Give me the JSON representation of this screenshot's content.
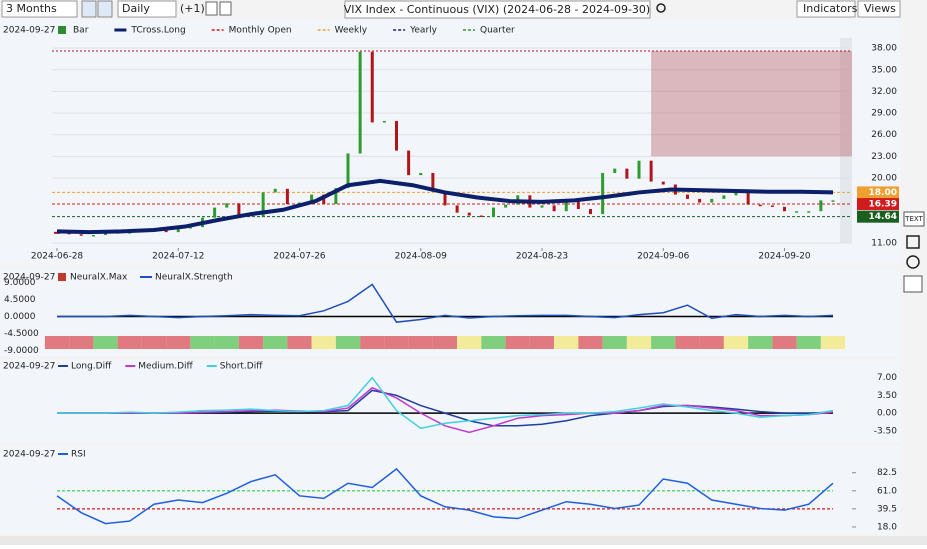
{
  "toolbar": {
    "period": "3 Months",
    "interval": "Daily",
    "offset": "(+1)",
    "title": "VIX Index - Continuous (VIX) (2024-06-28 - 2024-09-30)",
    "indicators": "Indicators",
    "views": "Views"
  },
  "main": {
    "legend": {
      "date": "2024-09-27",
      "items": [
        {
          "name": "Bar",
          "color": "#2e8b2e"
        },
        {
          "name": "TCross.Long",
          "color": "#0b1f6b"
        },
        {
          "name": "Monthly Open",
          "color": "#d01c1c"
        },
        {
          "name": "Weekly",
          "color": "#f0a030"
        },
        {
          "name": "Yearly",
          "color": "#1a237e"
        },
        {
          "name": "Quarter",
          "color": "#2e9b2e"
        }
      ]
    },
    "ylim": [
      10.3,
      39.4
    ],
    "yticks": [
      {
        "value": 38,
        "label": "38.00"
      },
      {
        "value": 35,
        "label": "35.00"
      },
      {
        "value": 32,
        "label": "32.00"
      },
      {
        "value": 29,
        "label": "29.00"
      },
      {
        "value": 26,
        "label": "26.00"
      },
      {
        "value": 23,
        "label": "23.00"
      },
      {
        "value": 20,
        "label": "20.00"
      },
      {
        "value": 11,
        "label": "11.00"
      }
    ],
    "xticks": [
      {
        "value": 0,
        "label": "2024-06-28"
      },
      {
        "value": 10,
        "label": "2024-07-12"
      },
      {
        "value": 20,
        "label": "2024-07-26"
      },
      {
        "value": 30,
        "label": "2024-08-09"
      },
      {
        "value": 40,
        "label": "2024-08-23"
      },
      {
        "value": 50,
        "label": "2024-09-06"
      },
      {
        "value": 60,
        "label": "2024-09-20"
      }
    ],
    "close": [
      12.4,
      12.2,
      12.0,
      12.1,
      12.5,
      12.4,
      12.5,
      12.9,
      12.9,
      12.5,
      13.1,
      13.2,
      14.5,
      15.9,
      16.5,
      14.9,
      14.7,
      18.0,
      18.5,
      16.4,
      16.6,
      17.7,
      16.4,
      18.6,
      23.4,
      37.5,
      27.7,
      27.9,
      23.8,
      20.4,
      20.7,
      18.1,
      16.2,
      15.2,
      14.8,
      14.6,
      15.9,
      16.3,
      17.6,
      15.9,
      16.2,
      15.4,
      17.1,
      15.7,
      15.0,
      20.7,
      21.3,
      19.9,
      22.4,
      19.5,
      19.1,
      17.7,
      17.1,
      16.6,
      17.1,
      17.6,
      18.2,
      16.3,
      16.2,
      16.0,
      15.4,
      15.4,
      15.4,
      16.9,
      16.9
    ],
    "tcross_long": [
      12.6,
      12.5,
      12.6,
      12.8,
      13.3,
      14.2,
      15.0,
      15.6,
      16.8,
      19.0,
      19.6,
      19.0,
      18.0,
      17.3,
      16.8,
      16.7,
      16.9,
      17.4,
      18.0,
      18.4,
      18.3,
      18.2,
      18.1,
      18.1,
      18.0
    ],
    "zone": {
      "low": 23,
      "high": 37.6,
      "from": 49
    },
    "levels": [
      {
        "value": 18,
        "label": "18.00",
        "color": "#f0a030"
      },
      {
        "value": 16.39,
        "label": "16.39",
        "color": "#d01c1c"
      },
      {
        "value": 14.64,
        "label": "14.64",
        "color": "#1b5e20"
      }
    ],
    "up_color": "#2e9b2e",
    "down_color": "#b0151a"
  },
  "neural": {
    "date": "2024-09-27",
    "max_name": "NeuralX.Max",
    "strength_name": "NeuralX.Strength",
    "max_color": "#c0392b",
    "strength_color": "#1f4fbf",
    "ylim": [
      -10.2,
      10.2
    ],
    "yticks": [
      {
        "value": 9,
        "label": "9.0000"
      },
      {
        "value": 4.5,
        "label": "4.5000"
      },
      {
        "value": 0,
        "label": "0.0000"
      },
      {
        "value": -4.5,
        "label": "-4.5000"
      },
      {
        "value": -9,
        "label": "-9.0000"
      }
    ],
    "strength": [
      0,
      0,
      0,
      0.3,
      0,
      -0.3,
      0,
      0.2,
      0.5,
      0.3,
      0.2,
      1.5,
      4,
      8.5,
      -1.5,
      -0.8,
      0.3,
      -0.4,
      0,
      0.2,
      0.3,
      0.3,
      0,
      -0.3,
      0.5,
      1,
      3,
      -0.5,
      0.5,
      0,
      0.3,
      0,
      0.3
    ],
    "strip": [
      "#e07a80",
      "#e07a80",
      "#7fcf7f",
      "#e07a80",
      "#e07a80",
      "#e07a80",
      "#7fcf7f",
      "#7fcf7f",
      "#e07a80",
      "#7fcf7f",
      "#e07a80",
      "#f2ec9a",
      "#7fcf7f",
      "#e07a80",
      "#e07a80",
      "#e07a80",
      "#e07a80",
      "#f2ec9a",
      "#7fcf7f",
      "#e07a80",
      "#e07a80",
      "#f2ec9a",
      "#e07a80",
      "#7fcf7f",
      "#f2ec9a",
      "#7fcf7f",
      "#e07a80",
      "#e07a80",
      "#f2ec9a",
      "#7fcf7f",
      "#e07a80",
      "#7fcf7f",
      "#f2ec9a"
    ]
  },
  "diff": {
    "date": "2024-09-27",
    "ylim": [
      -5.5,
      9.5
    ],
    "yticks": [
      {
        "value": 7,
        "label": "7.00"
      },
      {
        "value": 3.5,
        "label": "3.50"
      },
      {
        "value": 0,
        "label": "0.00"
      },
      {
        "value": -3.5,
        "label": "-3.50"
      }
    ],
    "series": [
      {
        "name": "Long.Diff",
        "color": "#1f3f9f",
        "values": [
          0,
          0,
          0,
          0,
          0,
          0,
          0.1,
          0.2,
          0.3,
          0.4,
          0.3,
          0.3,
          0.5,
          4.5,
          3.5,
          1.5,
          0,
          -1.5,
          -2.5,
          -2.5,
          -2.2,
          -1.5,
          -0.5,
          0,
          0.5,
          1.3,
          1.5,
          1.2,
          0.8,
          0.3,
          0,
          0,
          0.2
        ]
      },
      {
        "name": "Medium.Diff",
        "color": "#c03ad0",
        "values": [
          0,
          0,
          0,
          0,
          0,
          0,
          0.2,
          0.3,
          0.5,
          0.6,
          0.4,
          0.3,
          1,
          5,
          3,
          0,
          -2.5,
          -3.8,
          -2.5,
          -1,
          -0.5,
          -0.3,
          0,
          0,
          0.5,
          1.5,
          1.5,
          1,
          0.5,
          -0.5,
          -0.5,
          -0.3,
          0.2
        ]
      },
      {
        "name": "Short.Diff",
        "color": "#40d0e0",
        "values": [
          0,
          0,
          0,
          0.2,
          0,
          0.2,
          0.5,
          0.6,
          0.8,
          0.5,
          0.3,
          0.5,
          1.5,
          7,
          0.5,
          -3,
          -2,
          -1.5,
          -1,
          -0.5,
          -0.3,
          0,
          0,
          0.3,
          1,
          1.8,
          1.2,
          0.5,
          0,
          -0.8,
          -0.5,
          -0.3,
          0.5
        ]
      }
    ]
  },
  "rsi": {
    "date": "2024-09-27",
    "name": "RSI",
    "color": "#1f5fdf",
    "ylim": [
      12,
      100
    ],
    "yticks": [
      82.5,
      61.0,
      39.5,
      18.0
    ],
    "yticklabels": [
      "82.5",
      "61.0",
      "39.5",
      "18.0"
    ],
    "levels": [
      {
        "value": 61,
        "color": "#2ecc40"
      },
      {
        "value": 39.5,
        "color": "#d01c1c"
      }
    ],
    "values": [
      55,
      35,
      22,
      25,
      45,
      50,
      47,
      58,
      72,
      80,
      55,
      52,
      70,
      65,
      87,
      55,
      42,
      38,
      30,
      28,
      38,
      48,
      45,
      40,
      44,
      75,
      70,
      50,
      45,
      40,
      38,
      45,
      70
    ]
  },
  "icons": {
    "text": "TEXT"
  }
}
